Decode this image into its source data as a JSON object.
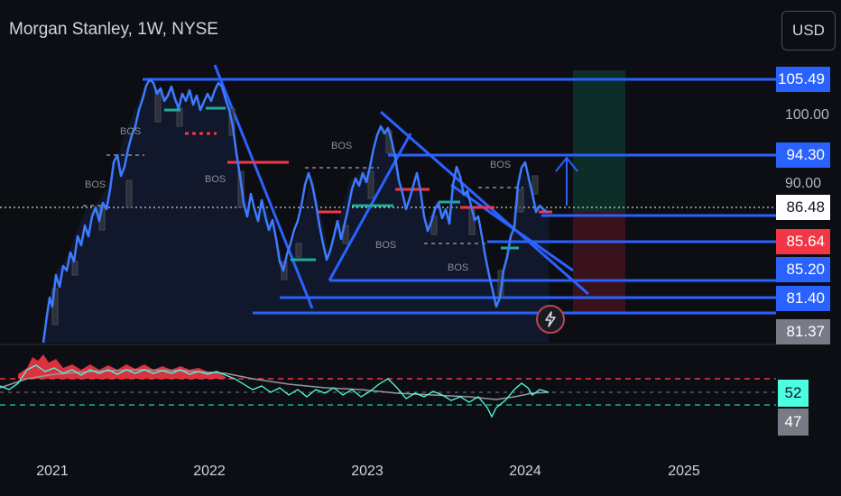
{
  "header": {
    "title": "Morgan Stanley, 1W, NYSE",
    "currency": "USD"
  },
  "price_scale": {
    "labels": [
      "100.00",
      "90.00"
    ],
    "tags": [
      {
        "value": "105.49",
        "bg": "#2962ff",
        "fg": "#ffffff"
      },
      {
        "value": "94.30",
        "bg": "#2962ff",
        "fg": "#ffffff"
      },
      {
        "value": "86.48",
        "bg": "#ffffff",
        "fg": "#131722"
      },
      {
        "value": "85.64",
        "bg": "#f23645",
        "fg": "#ffffff"
      },
      {
        "value": "85.20",
        "bg": "#2962ff",
        "fg": "#ffffff"
      },
      {
        "value": "81.40",
        "bg": "#2962ff",
        "fg": "#ffffff"
      },
      {
        "value": "81.37",
        "bg": "#787b86",
        "fg": "#ffffff"
      }
    ]
  },
  "time_axis": {
    "labels": [
      "2021",
      "2022",
      "2023",
      "2024",
      "2025"
    ]
  },
  "rsi": {
    "tags": [
      {
        "value": "52",
        "bg": "#4dffe1",
        "fg": "#131722"
      },
      {
        "value": "47",
        "bg": "#787b86",
        "fg": "#ffffff"
      }
    ]
  },
  "annotations": {
    "bos_labels": [
      "BOS",
      "BOS",
      "BOS",
      "BOS",
      "BOS",
      "BOS",
      "BOS"
    ]
  },
  "icons": {
    "alert": "lightning-icon"
  },
  "colors": {
    "accent": "#2962ff",
    "price_line": "#3d7bff",
    "bear": "#f23645",
    "bull": "#22ab94"
  }
}
